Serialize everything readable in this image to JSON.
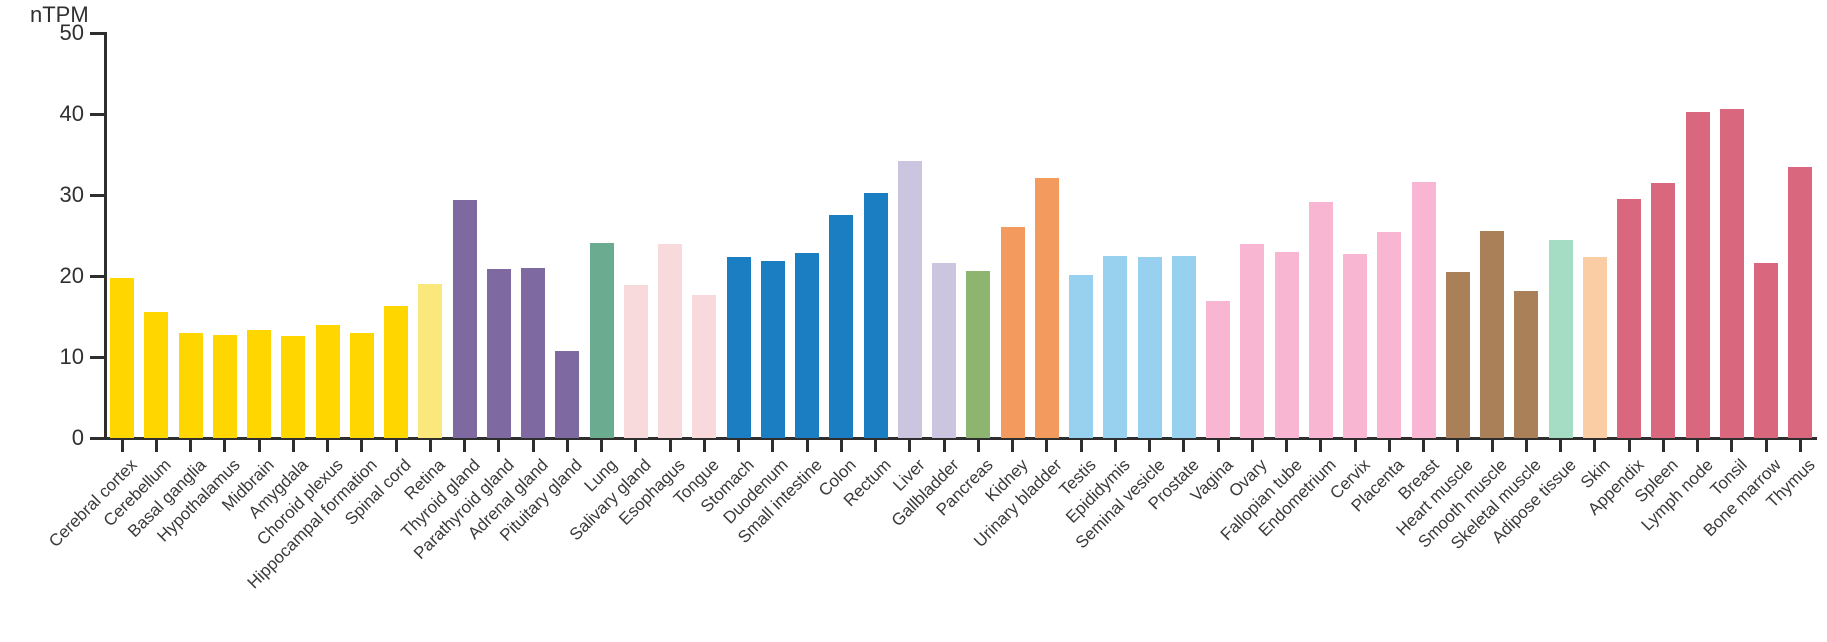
{
  "chart_data": {
    "type": "bar",
    "title": "",
    "ylabel": "nTPM",
    "xlabel": "",
    "ylim": [
      0,
      50
    ],
    "yticks": [
      0,
      10,
      20,
      30,
      40,
      50
    ],
    "grid": false,
    "legend": false,
    "axis_color": "#2e2e2e",
    "tick_label_color": "#303030",
    "category_label_color": "#3a3a3a",
    "categories": [
      "Cerebral cortex",
      "Cerebellum",
      "Basal ganglia",
      "Hypothalamus",
      "Midbrain",
      "Amygdala",
      "Choroid plexus",
      "Hippocampal formation",
      "Spinal cord",
      "Retina",
      "Thyroid gland",
      "Parathyroid gland",
      "Adrenal gland",
      "Pituitary gland",
      "Lung",
      "Salivary gland",
      "Esophagus",
      "Tongue",
      "Stomach",
      "Duodenum",
      "Small intestine",
      "Colon",
      "Rectum",
      "Liver",
      "Gallbladder",
      "Pancreas",
      "Kidney",
      "Urinary bladder",
      "Testis",
      "Epididymis",
      "Seminal vesicle",
      "Prostate",
      "Vagina",
      "Ovary",
      "Fallopian tube",
      "Endometrium",
      "Cervix",
      "Placenta",
      "Breast",
      "Heart muscle",
      "Smooth muscle",
      "Skeletal muscle",
      "Adipose tissue",
      "Skin",
      "Appendix",
      "Spleen",
      "Lymph node",
      "Tonsil",
      "Bone marrow",
      "Thymus"
    ],
    "values": [
      19.7,
      15.6,
      13.0,
      12.7,
      13.3,
      12.6,
      13.9,
      13.0,
      16.3,
      19.0,
      29.4,
      20.9,
      21.0,
      10.7,
      24.1,
      18.9,
      24.0,
      17.7,
      22.3,
      21.9,
      22.9,
      27.5,
      30.2,
      34.2,
      21.6,
      20.6,
      26.1,
      32.1,
      20.1,
      22.5,
      22.3,
      22.5,
      16.9,
      23.9,
      23.0,
      29.1,
      22.7,
      25.4,
      31.6,
      20.5,
      25.5,
      18.1,
      24.5,
      22.4,
      29.5,
      31.5,
      40.3,
      40.6,
      21.6,
      33.5
    ],
    "bar_colors": [
      "#FFD600",
      "#FFD600",
      "#FFD600",
      "#FFD600",
      "#FFD600",
      "#FFD600",
      "#FFD600",
      "#FFD600",
      "#FFD600",
      "#FBE87D",
      "#7E6AA0",
      "#7E6AA0",
      "#7E6AA0",
      "#7E6AA0",
      "#6BAB90",
      "#F9DADC",
      "#F9DADC",
      "#F9DADC",
      "#1B7EC2",
      "#1B7EC2",
      "#1B7EC2",
      "#1B7EC2",
      "#1B7EC2",
      "#CCC5E0",
      "#CCC5E0",
      "#8DB56F",
      "#F39A5F",
      "#F39A5F",
      "#97D1EF",
      "#97D1EF",
      "#97D1EF",
      "#97D1EF",
      "#F8B6D2",
      "#F8B6D2",
      "#F8B6D2",
      "#F8B6D2",
      "#F8B6D2",
      "#F8B6D2",
      "#F8B6D2",
      "#AA8059",
      "#AA8059",
      "#AA8059",
      "#A5DCC4",
      "#FACDA4",
      "#D9687F",
      "#D9687F",
      "#D9687F",
      "#D9687F",
      "#D9687F",
      "#D9687F"
    ]
  }
}
